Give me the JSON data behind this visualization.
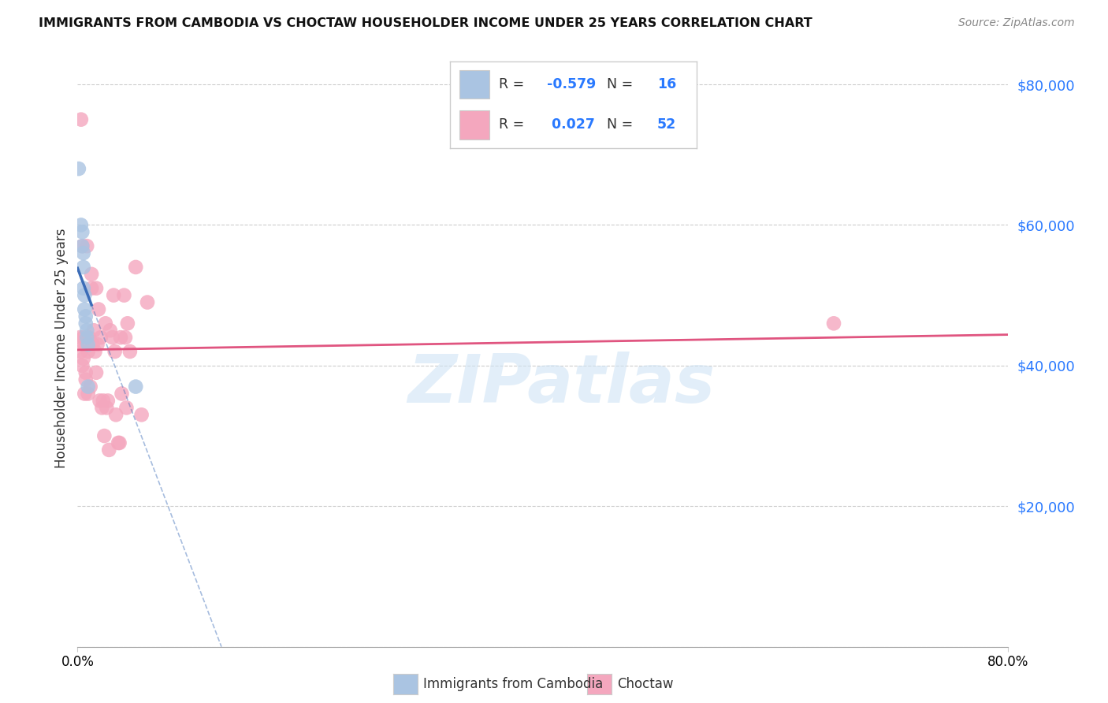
{
  "title": "IMMIGRANTS FROM CAMBODIA VS CHOCTAW HOUSEHOLDER INCOME UNDER 25 YEARS CORRELATION CHART",
  "source": "Source: ZipAtlas.com",
  "ylabel": "Householder Income Under 25 years",
  "legend_blue_label": "Immigrants from Cambodia",
  "legend_pink_label": "Choctaw",
  "R_blue": -0.579,
  "N_blue": 16,
  "R_pink": 0.027,
  "N_pink": 52,
  "blue_color": "#aac4e2",
  "blue_line_color": "#3b6cb7",
  "pink_color": "#f4a7be",
  "pink_line_color": "#e05580",
  "ytick_labels": [
    "$0",
    "$20,000",
    "$40,000",
    "$60,000",
    "$80,000"
  ],
  "ytick_values": [
    0,
    20000,
    40000,
    60000,
    80000
  ],
  "xlim": [
    0,
    0.8
  ],
  "ylim": [
    0,
    85000
  ],
  "watermark_text": "ZIPatlas",
  "blue_dots_x": [
    0.001,
    0.003,
    0.004,
    0.004,
    0.005,
    0.005,
    0.005,
    0.006,
    0.006,
    0.007,
    0.007,
    0.008,
    0.008,
    0.009,
    0.009,
    0.05
  ],
  "blue_dots_y": [
    68000,
    60000,
    59000,
    57000,
    56000,
    54000,
    51000,
    50000,
    48000,
    47000,
    46000,
    45000,
    44000,
    43000,
    37000,
    37000
  ],
  "pink_dots_x": [
    0.002,
    0.003,
    0.004,
    0.004,
    0.005,
    0.005,
    0.006,
    0.006,
    0.007,
    0.007,
    0.008,
    0.009,
    0.009,
    0.01,
    0.011,
    0.012,
    0.012,
    0.013,
    0.014,
    0.015,
    0.016,
    0.016,
    0.017,
    0.018,
    0.019,
    0.02,
    0.021,
    0.022,
    0.023,
    0.024,
    0.025,
    0.026,
    0.027,
    0.028,
    0.03,
    0.031,
    0.032,
    0.033,
    0.035,
    0.036,
    0.037,
    0.038,
    0.04,
    0.041,
    0.042,
    0.043,
    0.045,
    0.05,
    0.055,
    0.06,
    0.65,
    0.003
  ],
  "pink_dots_y": [
    44000,
    42000,
    40000,
    57000,
    41000,
    44000,
    36000,
    43000,
    39000,
    38000,
    57000,
    42000,
    36000,
    44000,
    37000,
    51000,
    53000,
    43000,
    45000,
    42000,
    39000,
    51000,
    43000,
    48000,
    35000,
    44000,
    34000,
    35000,
    30000,
    46000,
    34000,
    35000,
    28000,
    45000,
    44000,
    50000,
    42000,
    33000,
    29000,
    29000,
    44000,
    36000,
    50000,
    44000,
    34000,
    46000,
    42000,
    54000,
    33000,
    49000,
    46000,
    75000
  ]
}
